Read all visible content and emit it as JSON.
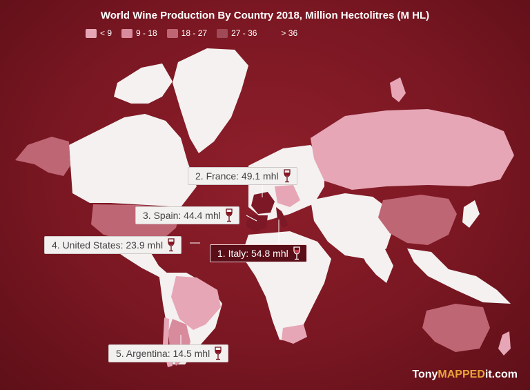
{
  "title": "World Wine Production By Country 2018, Million Hectolitres (M HL)",
  "legend": [
    {
      "label": "< 9",
      "color": "#e6a6b6"
    },
    {
      "label": "9 - 18",
      "color": "#d88b9c"
    },
    {
      "label": "18 - 27",
      "color": "#bf6675"
    },
    {
      "label": "27 - 36",
      "color": "#a04a58"
    },
    {
      "label": "> 36",
      "color": "#7d1826"
    }
  ],
  "colors": {
    "background": "#7a1722",
    "no_data_land": "#f4f1f0",
    "top_producer": "#5a0e17"
  },
  "callouts": [
    {
      "rank_label": "1. Italy: 54.8 mhl",
      "country": "Italy",
      "value": 54.8
    },
    {
      "rank_label": "2. France: 49.1 mhl",
      "country": "France",
      "value": 49.1
    },
    {
      "rank_label": "3. Spain: 44.4 mhl",
      "country": "Spain",
      "value": 44.4
    },
    {
      "rank_label": "4. United States: 23.9 mhl",
      "country": "United States",
      "value": 23.9
    },
    {
      "rank_label": "5. Argentina: 14.5 mhl",
      "country": "Argentina",
      "value": 14.5
    }
  ],
  "brand": {
    "part1": "Tony",
    "part2": "MAPPED",
    "part3": "it.com"
  }
}
